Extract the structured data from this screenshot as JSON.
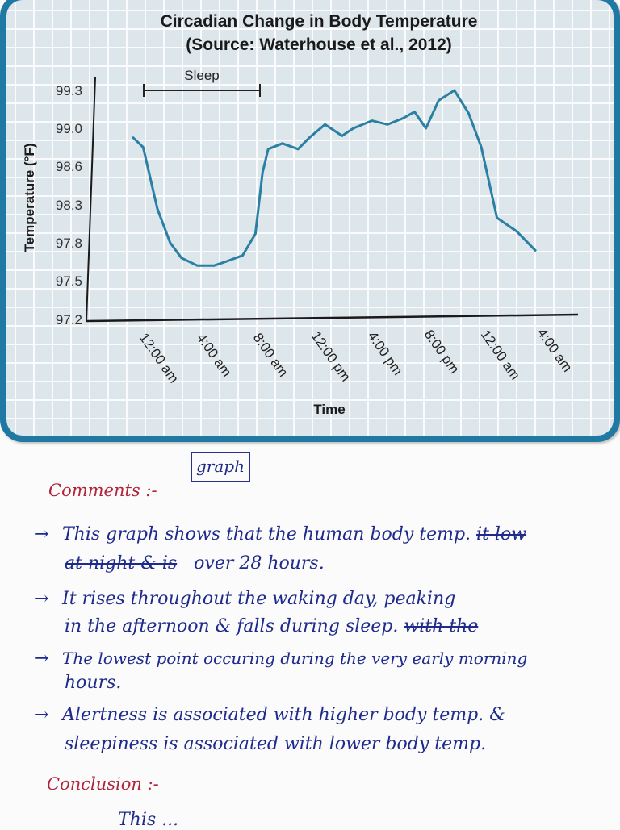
{
  "chart_data": {
    "type": "line",
    "title": "Circadian Change in Body Temperature",
    "subtitle": "(Source: Waterhouse et al., 2012)",
    "xlabel": "Time",
    "ylabel": "Temperature (°F)",
    "x_tick_labels": [
      "12:00 am",
      "4:00 am",
      "8:00 am",
      "12:00 pm",
      "4:00 pm",
      "8:00 pm",
      "12:00 am",
      "4:00 am"
    ],
    "y_tick_labels": [
      "99.3",
      "99.0",
      "98.6",
      "98.3",
      "97.8",
      "97.5",
      "97.2"
    ],
    "ylim": [
      97.2,
      99.3
    ],
    "grid": true,
    "legend": null,
    "annotations": [
      {
        "text": "Sleep",
        "type": "bracket",
        "from": "~12:30 am",
        "to": "~8:30 am"
      }
    ],
    "series": [
      {
        "name": "Body temperature",
        "color": "#2a7fa4",
        "x_hours_from_midnight": [
          0,
          0.7,
          1.7,
          2.6,
          3.4,
          4.5,
          5.7,
          6.5,
          7.7,
          8.6,
          9.1,
          9.5,
          10.5,
          11.6,
          12.4,
          13.5,
          14.7,
          15.5,
          16.8,
          17.9,
          19.0,
          19.8,
          20.6,
          21.5,
          22.6,
          23.6,
          24.5,
          25.6,
          27.0,
          28.3
        ],
        "values": [
          98.9,
          98.8,
          98.25,
          97.8,
          97.68,
          97.62,
          97.62,
          97.65,
          97.7,
          97.92,
          98.55,
          98.78,
          98.84,
          98.78,
          98.9,
          99.03,
          98.92,
          99.0,
          99.06,
          99.03,
          99.08,
          99.13,
          99.0,
          99.22,
          99.33,
          99.12,
          98.8,
          98.13,
          97.95,
          97.74
        ]
      }
    ]
  },
  "notes": {
    "graph_label": "graph",
    "comments_heading": "Comments :-",
    "bullets": [
      {
        "marker": "→",
        "lines": [
          {
            "text": "This graph shows that the human body temp.",
            "struck": "it low"
          },
          {
            "struck": "at night & is",
            "text": "over 28 hours."
          }
        ]
      },
      {
        "marker": "→",
        "lines": [
          {
            "text": "It rises throughout the waking day, peaking"
          },
          {
            "text": "in the afternoon & falls during sleep.",
            "struck": "with the"
          }
        ]
      },
      {
        "marker": "→",
        "lines": [
          {
            "text": "The lowest point occuring during the very early morning"
          },
          {
            "text": "hours."
          }
        ]
      },
      {
        "marker": "→",
        "lines": [
          {
            "text": "Alertness is associated with higher body temp. &"
          },
          {
            "text": "sleepiness is associated with lower body temp."
          }
        ]
      }
    ],
    "conclusion_heading": "Conclusion :-",
    "conclusion_partial": "This ..."
  }
}
